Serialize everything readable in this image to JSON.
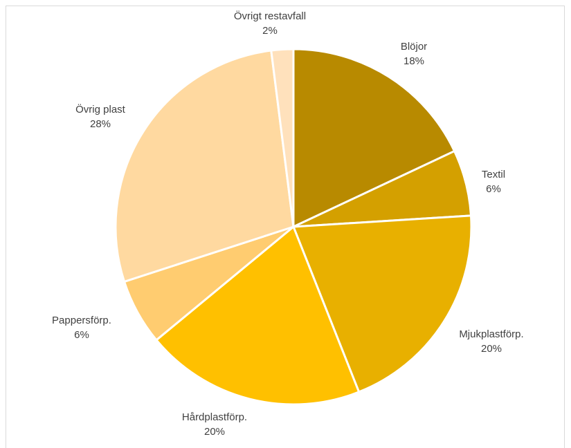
{
  "chart_data": {
    "type": "pie",
    "slices": [
      {
        "name": "Blöjor",
        "value": 18,
        "value_label": "18%",
        "color": "#B88A00"
      },
      {
        "name": "Textil",
        "value": 6,
        "value_label": "6%",
        "color": "#D4A000"
      },
      {
        "name": "Mjukplastförp.",
        "value": 20,
        "value_label": "20%",
        "color": "#E8B000"
      },
      {
        "name": "Hårdplastförp.",
        "value": 20,
        "value_label": "20%",
        "color": "#FFC000"
      },
      {
        "name": "Pappersförp.",
        "value": 6,
        "value_label": "6%",
        "color": "#FFCC70"
      },
      {
        "name": "Övrig plast",
        "value": 28,
        "value_label": "28%",
        "color": "#FFD9A0"
      },
      {
        "name": "Övrigt restavfall",
        "value": 2,
        "value_label": "2%",
        "color": "#FFE1BC"
      }
    ],
    "start_angle_deg": 0,
    "direction": "clockwise",
    "slice_border_color": "#ffffff",
    "legend": "none",
    "data_labels": "outside, category name and percentage"
  }
}
